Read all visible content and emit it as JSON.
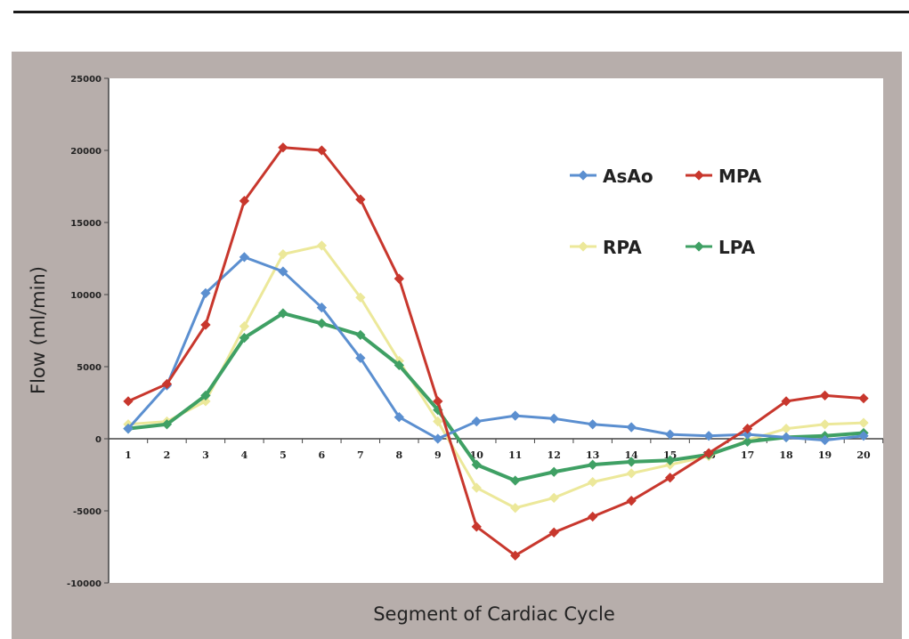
{
  "chart_data": {
    "type": "line",
    "title": "",
    "xlabel": "Segment of Cardiac Cycle",
    "ylabel": "Flow (ml/min)",
    "x": [
      1,
      2,
      3,
      4,
      5,
      6,
      7,
      8,
      9,
      10,
      11,
      12,
      13,
      14,
      15,
      16,
      17,
      18,
      19,
      20
    ],
    "ylim": [
      -10000,
      25000
    ],
    "yticks": [
      -10000,
      -5000,
      0,
      5000,
      10000,
      15000,
      20000,
      25000
    ],
    "grid": false,
    "legend_placement": "top-right",
    "series": [
      {
        "name": "AsAo",
        "color": "#5b8fd0",
        "values": [
          700,
          3700,
          10100,
          12600,
          11600,
          9100,
          5600,
          1500,
          0,
          1200,
          1600,
          1400,
          1000,
          800,
          300,
          200,
          300,
          100,
          -100,
          200
        ]
      },
      {
        "name": "MPA",
        "color": "#c8372d",
        "values": [
          2600,
          3800,
          7900,
          16500,
          20200,
          20000,
          16600,
          11100,
          2600,
          -6100,
          -8100,
          -6500,
          -5400,
          -4300,
          -2700,
          -1000,
          700,
          2600,
          3000,
          2800
        ]
      },
      {
        "name": "RPA",
        "color": "#ece89a",
        "values": [
          1000,
          1200,
          2600,
          7800,
          12800,
          13400,
          9800,
          5400,
          1200,
          -3400,
          -4800,
          -4100,
          -3000,
          -2400,
          -1800,
          -1200,
          -100,
          700,
          1000,
          1100
        ]
      },
      {
        "name": "LPA",
        "color": "#3fa064",
        "values": [
          700,
          1000,
          3000,
          7000,
          8700,
          8000,
          7200,
          5100,
          2000,
          -1800,
          -2900,
          -2300,
          -1800,
          -1600,
          -1500,
          -1100,
          -200,
          100,
          200,
          400
        ]
      }
    ]
  }
}
